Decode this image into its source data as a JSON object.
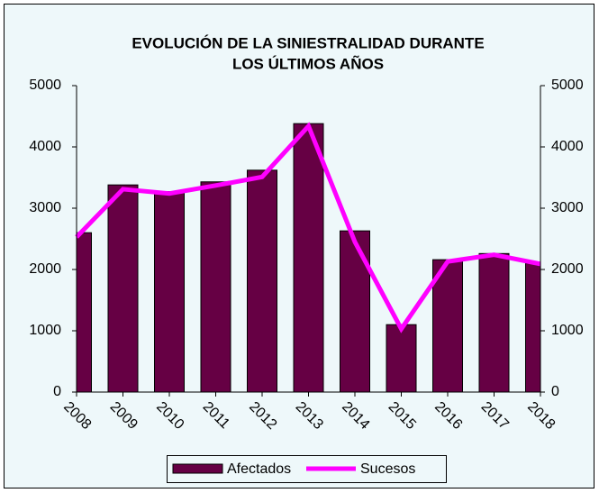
{
  "chart_data": {
    "type": "bar_line",
    "title": [
      "EVOLUCIÓN DE LA SINIESTRALIDAD DURANTE",
      "LOS ÚLTIMOS AÑOS"
    ],
    "categories": [
      "2008",
      "2009",
      "2010",
      "2011",
      "2012",
      "2013",
      "2014",
      "2015",
      "2016",
      "2017",
      "2018"
    ],
    "series": [
      {
        "name": "Afectados",
        "type": "bar",
        "color": "#660044",
        "values": [
          2600,
          3380,
          3270,
          3430,
          3620,
          4380,
          2630,
          1100,
          2160,
          2260,
          2100
        ]
      },
      {
        "name": "Sucesos",
        "type": "line",
        "color": "#ff00ff",
        "axis": "y2",
        "values": [
          2530,
          3310,
          3240,
          3370,
          3510,
          4340,
          2450,
          1030,
          2130,
          2240,
          2090
        ]
      }
    ],
    "ylim": [
      0,
      5000
    ],
    "yticks": [
      0,
      1000,
      2000,
      3000,
      4000,
      5000
    ],
    "y2lim": [
      0,
      5000
    ],
    "y2ticks": [
      0,
      1000,
      2000,
      3000,
      4000,
      5000
    ],
    "legend": "bottom"
  }
}
